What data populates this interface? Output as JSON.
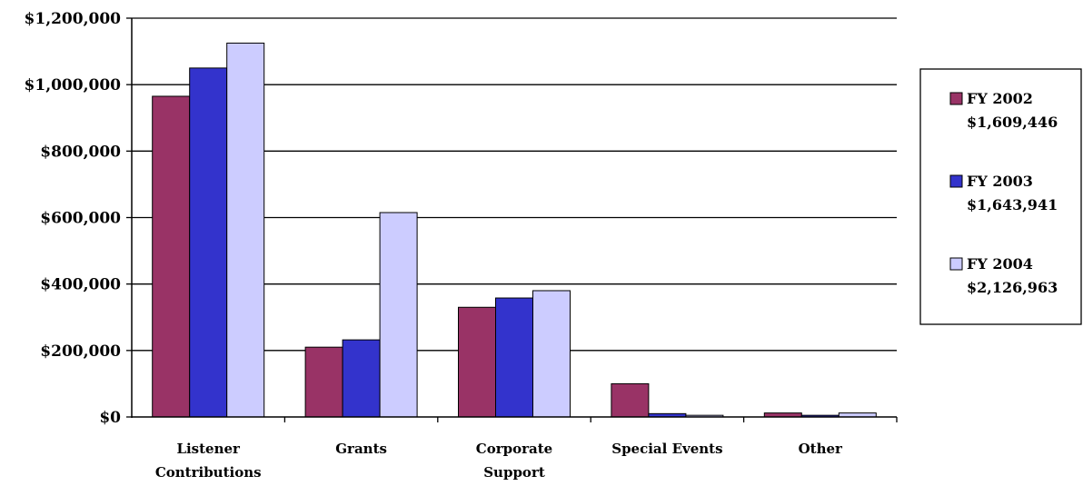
{
  "chart_data": {
    "type": "bar",
    "categories": [
      [
        "Listener",
        "Contributions"
      ],
      [
        "Grants"
      ],
      [
        "Corporate",
        "Support"
      ],
      [
        "Special Events"
      ],
      [
        "Other"
      ]
    ],
    "series": [
      {
        "name": "FY 2002",
        "total": "$1,609,446",
        "color": "#993366",
        "values": [
          965000,
          210000,
          330000,
          100000,
          12000
        ]
      },
      {
        "name": "FY 2003",
        "total": "$1,643,941",
        "color": "#3333CC",
        "values": [
          1050000,
          232000,
          358000,
          10000,
          5000
        ]
      },
      {
        "name": "FY 2004",
        "total": "$2,126,963",
        "color": "#CCCCFF",
        "values": [
          1125000,
          615000,
          380000,
          5000,
          12000
        ]
      }
    ],
    "y_ticks": [
      "$0",
      "$200,000",
      "$400,000",
      "$600,000",
      "$800,000",
      "$1,000,000",
      "$1,200,000"
    ],
    "ylim": [
      0,
      1200000
    ],
    "grid": true,
    "legend_position": "right"
  }
}
